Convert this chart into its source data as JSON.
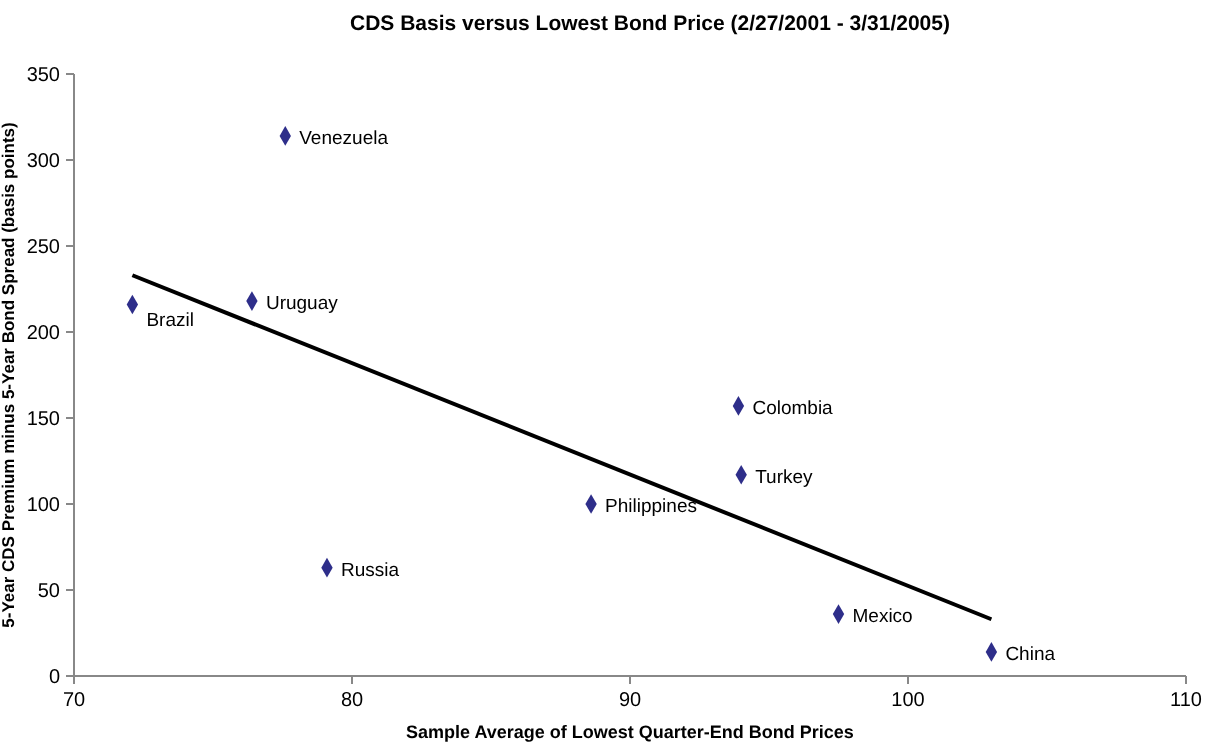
{
  "chart_data": {
    "type": "scatter",
    "title": "CDS Basis versus Lowest Bond Price (2/27/2001 - 3/31/2005)",
    "xlabel": "Sample Average of Lowest Quarter-End Bond Prices",
    "ylabel": "5-Year CDS Premium minus 5-Year Bond Spread (basis points)",
    "xlim": [
      70,
      110
    ],
    "xticks": [
      70,
      80,
      90,
      100,
      110
    ],
    "ylim": [
      0,
      350
    ],
    "yticks": [
      0,
      50,
      100,
      150,
      200,
      250,
      300,
      350
    ],
    "grid": false,
    "marker": "diamond",
    "series": [
      {
        "name": "Venezuela",
        "color": "#2e2e8a",
        "x": [
          77.6
        ],
        "values": [
          314
        ]
      },
      {
        "name": "Brazil",
        "color": "#2e2e8a",
        "x": [
          72.1
        ],
        "values": [
          216
        ]
      },
      {
        "name": "Uruguay",
        "color": "#2e2e8a",
        "x": [
          76.4
        ],
        "values": [
          218
        ]
      },
      {
        "name": "Colombia",
        "color": "#2e2e8a",
        "x": [
          93.9
        ],
        "values": [
          157
        ]
      },
      {
        "name": "Turkey",
        "color": "#2e2e8a",
        "x": [
          94.0
        ],
        "values": [
          117
        ]
      },
      {
        "name": "Philippines",
        "color": "#2e2e8a",
        "x": [
          88.6
        ],
        "values": [
          100
        ]
      },
      {
        "name": "Russia",
        "color": "#2e2e8a",
        "x": [
          79.1
        ],
        "values": [
          63
        ]
      },
      {
        "name": "Mexico",
        "color": "#2e2e8a",
        "x": [
          97.5
        ],
        "values": [
          36
        ]
      },
      {
        "name": "China",
        "color": "#2e2e8a",
        "x": [
          103.0
        ],
        "values": [
          14
        ]
      },
      {
        "type": "line",
        "color": "#000000",
        "marker": "none",
        "x": [
          72.1,
          103.0
        ],
        "values": [
          233,
          33
        ]
      }
    ]
  }
}
